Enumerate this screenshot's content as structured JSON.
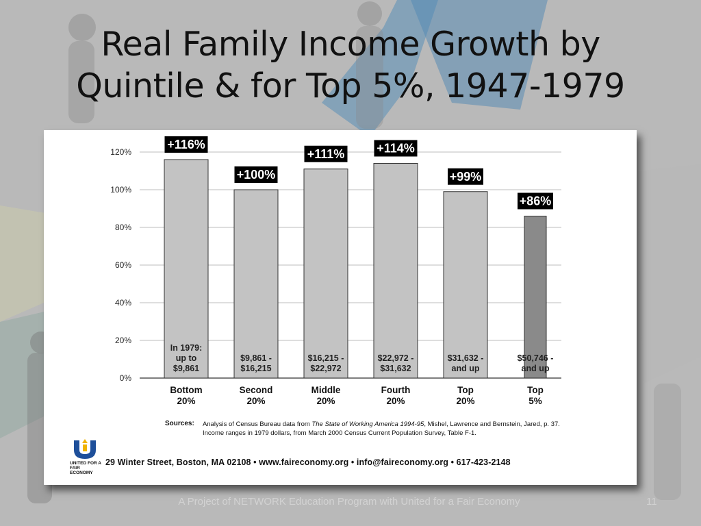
{
  "slide": {
    "title_line1": "Real Family Income Growth by",
    "title_line2": "Quintile & for Top 5%, 1947-1979",
    "footer": "A Project of NETWORK Education Program with United for a Fair Economy",
    "page_number": "11"
  },
  "chart_data": {
    "type": "bar",
    "categories": [
      [
        "Bottom",
        "20%"
      ],
      [
        "Second",
        "20%"
      ],
      [
        "Middle",
        "20%"
      ],
      [
        "Fourth",
        "20%"
      ],
      [
        "Top",
        "20%"
      ],
      [
        "Top",
        "5%"
      ]
    ],
    "values": [
      116,
      100,
      111,
      114,
      99,
      86
    ],
    "value_labels": [
      "+116%",
      "+100%",
      "+111%",
      "+114%",
      "+99%",
      "+86%"
    ],
    "bar_notes": [
      [
        "In 1979:",
        "up to",
        "$9,861"
      ],
      [
        "$9,861 -",
        "$16,215"
      ],
      [
        "$16,215 -",
        "$22,972"
      ],
      [
        "$22,972 -",
        "$31,632"
      ],
      [
        "$31,632 -",
        "and up"
      ],
      [
        "$50,746 -",
        "and up"
      ]
    ],
    "ylim": [
      0,
      120
    ],
    "yticks": [
      0,
      20,
      40,
      60,
      80,
      100,
      120
    ],
    "ytick_labels": [
      "0%",
      "20%",
      "40%",
      "60%",
      "80%",
      "100%",
      "120%"
    ],
    "grid": true,
    "bar_colors": [
      "#c3c3c3",
      "#c3c3c3",
      "#c3c3c3",
      "#c3c3c3",
      "#c3c3c3",
      "#8a8a8a"
    ]
  },
  "sources": {
    "label": "Sources:",
    "line1_prefix": "Analysis of Census Bureau data from ",
    "line1_italic": "The State of Working America 1994-95",
    "line1_suffix": ", Mishel, Lawrence and Bernstein, Jared, p. 37.",
    "line2": "Income ranges in 1979 dollars, from March 2000 Census Current Population Survey, Table F-1."
  },
  "contact": {
    "address_line": "29 Winter Street, Boston, MA 02108  •  www.faireconomy.org  •  info@faireconomy.org  •  617-423-2148",
    "logo_text": "UNITED FOR A FAIR ECONOMY"
  }
}
